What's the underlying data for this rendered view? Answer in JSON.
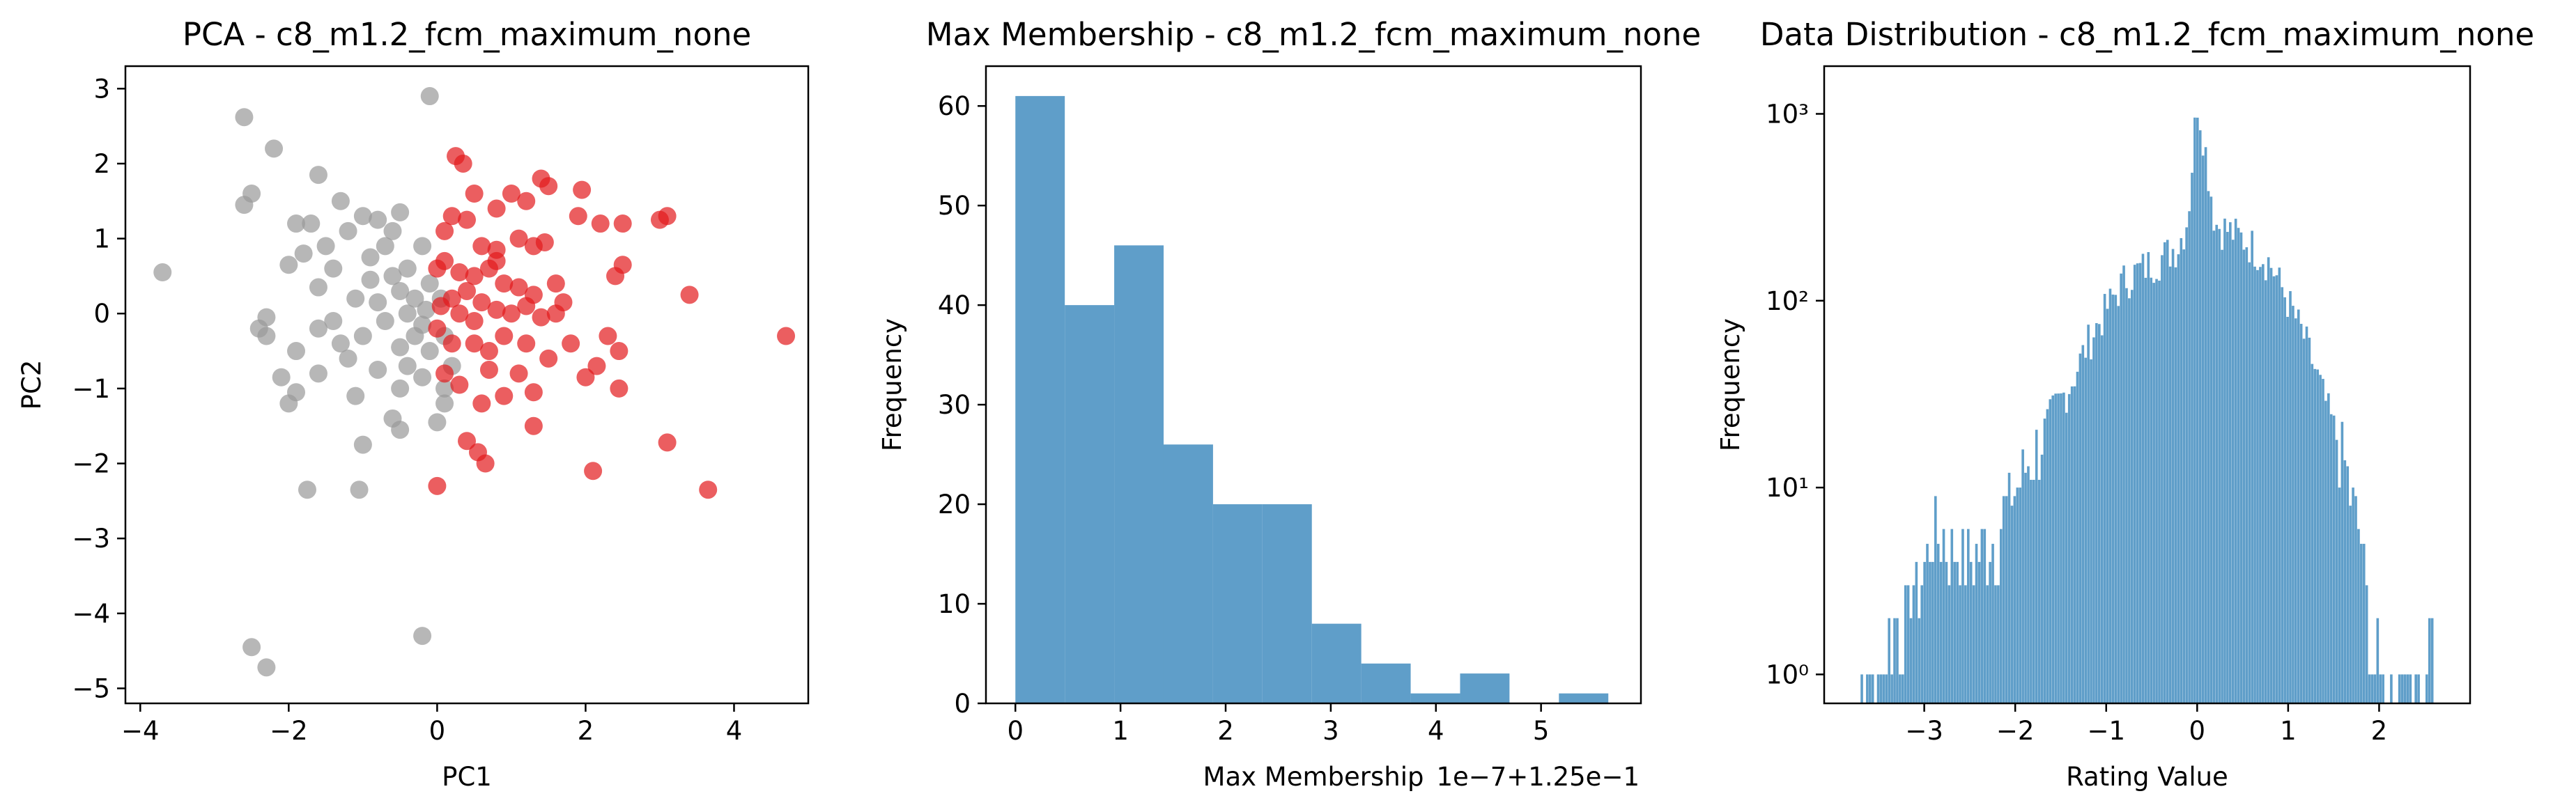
{
  "chart_data": [
    {
      "type": "scatter",
      "title": "PCA - c8_m1.2_fcm_maximum_none",
      "xlabel": "PC1",
      "ylabel": "PC2",
      "xlim": [
        -4.2,
        5.0
      ],
      "ylim": [
        -5.2,
        3.3
      ],
      "xticks": [
        -4,
        -2,
        0,
        2,
        4
      ],
      "yticks": [
        -5,
        -4,
        -3,
        -2,
        -1,
        0,
        1,
        2,
        3
      ],
      "colors": {
        "gray_cluster": "#999999",
        "red_cluster": "#e31a1c"
      },
      "series": [
        {
          "color": "#999999",
          "points": [
            [
              -3.7,
              0.55
            ],
            [
              -2.6,
              2.62
            ],
            [
              -2.2,
              2.2
            ],
            [
              -2.6,
              1.45
            ],
            [
              -2.5,
              1.6
            ],
            [
              -1.6,
              1.85
            ],
            [
              -0.1,
              2.9
            ],
            [
              -1.3,
              1.5
            ],
            [
              -1.0,
              1.3
            ],
            [
              -0.6,
              1.1
            ],
            [
              -0.5,
              1.35
            ],
            [
              -1.9,
              1.2
            ],
            [
              -1.7,
              1.2
            ],
            [
              -1.8,
              0.8
            ],
            [
              -2.0,
              0.65
            ],
            [
              -1.5,
              0.9
            ],
            [
              -1.2,
              1.1
            ],
            [
              -0.9,
              0.75
            ],
            [
              -0.7,
              0.9
            ],
            [
              -0.4,
              0.6
            ],
            [
              -0.2,
              0.9
            ],
            [
              -1.6,
              0.35
            ],
            [
              -1.4,
              0.6
            ],
            [
              -1.1,
              0.2
            ],
            [
              -0.8,
              0.15
            ],
            [
              -0.5,
              0.3
            ],
            [
              -0.3,
              0.2
            ],
            [
              -0.1,
              0.4
            ],
            [
              -2.3,
              -0.05
            ],
            [
              -2.4,
              -0.2
            ],
            [
              -2.3,
              -0.3
            ],
            [
              -1.9,
              -0.5
            ],
            [
              -1.6,
              -0.2
            ],
            [
              -1.3,
              -0.4
            ],
            [
              -1.0,
              -0.3
            ],
            [
              -0.7,
              -0.1
            ],
            [
              -0.5,
              -0.45
            ],
            [
              -0.3,
              -0.3
            ],
            [
              -0.1,
              -0.5
            ],
            [
              0.1,
              -0.3
            ],
            [
              -2.1,
              -0.85
            ],
            [
              -2.0,
              -1.2
            ],
            [
              -1.9,
              -1.05
            ],
            [
              -1.6,
              -0.8
            ],
            [
              -1.1,
              -1.1
            ],
            [
              -0.8,
              -0.75
            ],
            [
              -0.5,
              -1.0
            ],
            [
              -0.2,
              -0.85
            ],
            [
              0.1,
              -1.0
            ],
            [
              -1.0,
              -1.75
            ],
            [
              -0.6,
              -1.4
            ],
            [
              -0.5,
              -1.55
            ],
            [
              0.0,
              -1.45
            ],
            [
              0.1,
              -1.2
            ],
            [
              -1.75,
              -2.35
            ],
            [
              -1.05,
              -2.35
            ],
            [
              -2.5,
              -4.45
            ],
            [
              -2.3,
              -4.72
            ],
            [
              -0.2,
              -4.3
            ],
            [
              -0.4,
              0.0
            ],
            [
              -0.6,
              0.5
            ],
            [
              -0.9,
              0.45
            ],
            [
              -0.15,
              0.05
            ],
            [
              -1.2,
              -0.6
            ],
            [
              -0.4,
              -0.7
            ],
            [
              0.2,
              -0.7
            ],
            [
              0.05,
              0.2
            ],
            [
              -0.8,
              1.25
            ],
            [
              -1.4,
              -0.1
            ],
            [
              -0.2,
              -0.15
            ]
          ]
        },
        {
          "color": "#e31a1c",
          "points": [
            [
              0.25,
              2.1
            ],
            [
              0.35,
              2.0
            ],
            [
              0.5,
              1.6
            ],
            [
              0.8,
              1.4
            ],
            [
              1.0,
              1.6
            ],
            [
              1.2,
              1.5
            ],
            [
              1.4,
              1.8
            ],
            [
              1.5,
              1.7
            ],
            [
              1.95,
              1.65
            ],
            [
              3.0,
              1.25
            ],
            [
              3.1,
              1.3
            ],
            [
              1.9,
              1.3
            ],
            [
              2.2,
              1.2
            ],
            [
              2.5,
              1.2
            ],
            [
              0.1,
              1.1
            ],
            [
              0.2,
              1.3
            ],
            [
              0.4,
              1.25
            ],
            [
              0.6,
              0.9
            ],
            [
              0.8,
              0.85
            ],
            [
              1.1,
              1.0
            ],
            [
              1.3,
              0.9
            ],
            [
              1.45,
              0.95
            ],
            [
              2.4,
              0.5
            ],
            [
              2.5,
              0.65
            ],
            [
              3.4,
              0.25
            ],
            [
              0.0,
              0.6
            ],
            [
              0.1,
              0.7
            ],
            [
              0.3,
              0.55
            ],
            [
              0.5,
              0.5
            ],
            [
              0.7,
              0.6
            ],
            [
              0.9,
              0.4
            ],
            [
              1.1,
              0.35
            ],
            [
              1.3,
              0.25
            ],
            [
              1.6,
              0.4
            ],
            [
              0.05,
              0.1
            ],
            [
              0.2,
              0.2
            ],
            [
              0.4,
              0.3
            ],
            [
              0.6,
              0.15
            ],
            [
              0.8,
              0.05
            ],
            [
              1.0,
              0.0
            ],
            [
              1.2,
              0.1
            ],
            [
              1.4,
              -0.05
            ],
            [
              1.6,
              0.0
            ],
            [
              0.0,
              -0.2
            ],
            [
              0.2,
              -0.4
            ],
            [
              0.5,
              -0.4
            ],
            [
              0.7,
              -0.5
            ],
            [
              0.9,
              -0.3
            ],
            [
              1.2,
              -0.4
            ],
            [
              1.5,
              -0.6
            ],
            [
              2.3,
              -0.3
            ],
            [
              2.45,
              -0.5
            ],
            [
              2.15,
              -0.7
            ],
            [
              2.0,
              -0.85
            ],
            [
              4.7,
              -0.3
            ],
            [
              0.1,
              -0.8
            ],
            [
              0.3,
              -0.95
            ],
            [
              0.6,
              -1.2
            ],
            [
              0.9,
              -1.1
            ],
            [
              1.3,
              -1.05
            ],
            [
              2.45,
              -1.0
            ],
            [
              0.4,
              -1.7
            ],
            [
              0.55,
              -1.85
            ],
            [
              0.65,
              -2.0
            ],
            [
              1.3,
              -1.5
            ],
            [
              3.1,
              -1.72
            ],
            [
              2.1,
              -2.1
            ],
            [
              3.65,
              -2.35
            ],
            [
              0.0,
              -2.3
            ],
            [
              0.8,
              0.7
            ],
            [
              1.1,
              -0.8
            ],
            [
              0.3,
              0.0
            ],
            [
              1.7,
              0.15
            ],
            [
              0.5,
              -0.1
            ],
            [
              0.7,
              -0.75
            ],
            [
              1.8,
              -0.4
            ]
          ]
        }
      ]
    },
    {
      "type": "bar",
      "title": "Max Membership - c8_m1.2_fcm_maximum_none",
      "xlabel": "Max Membership",
      "ylabel": "Frequency",
      "offset_text": "1e−7+1.25e−1",
      "xlim": [
        -0.28,
        5.95
      ],
      "ylim": [
        0,
        64
      ],
      "xticks": [
        0,
        1,
        2,
        3,
        4,
        5
      ],
      "yticks": [
        0,
        10,
        20,
        30,
        40,
        50,
        60
      ],
      "color": "#5f9ec9",
      "bin_edges": [
        0.0,
        0.47,
        0.94,
        1.41,
        1.88,
        2.35,
        2.82,
        3.29,
        3.76,
        4.23,
        4.7,
        5.17,
        5.64
      ],
      "values": [
        61,
        40,
        46,
        26,
        20,
        20,
        8,
        4,
        1,
        3,
        0,
        1
      ]
    },
    {
      "type": "bar",
      "title": "Data Distribution - c8_m1.2_fcm_maximum_none",
      "xlabel": "Rating Value",
      "ylabel": "Frequency",
      "yscale": "log",
      "xlim": [
        -4.1,
        3.0
      ],
      "ylim": [
        0.7,
        1800
      ],
      "xticks": [
        -3,
        -2,
        -1,
        0,
        1,
        2
      ],
      "yticks": [
        1,
        10,
        100,
        1000
      ],
      "ytick_labels": [
        "10⁰",
        "10¹",
        "10²",
        "10³"
      ],
      "color": "#5f9ec9",
      "envelope": [
        [
          -3.7,
          1
        ],
        [
          -3.5,
          1
        ],
        [
          -3.4,
          1.5
        ],
        [
          -3.2,
          2
        ],
        [
          -3.0,
          4
        ],
        [
          -2.9,
          6
        ],
        [
          -2.7,
          5
        ],
        [
          -2.5,
          4
        ],
        [
          -2.2,
          6
        ],
        [
          -2.0,
          10
        ],
        [
          -1.8,
          15
        ],
        [
          -1.6,
          25
        ],
        [
          -1.4,
          35
        ],
        [
          -1.2,
          60
        ],
        [
          -1.0,
          90
        ],
        [
          -0.8,
          130
        ],
        [
          -0.6,
          150
        ],
        [
          -0.4,
          170
        ],
        [
          -0.2,
          200
        ],
        [
          -0.1,
          280
        ],
        [
          0.0,
          1200
        ],
        [
          0.05,
          900
        ],
        [
          0.1,
          600
        ],
        [
          0.2,
          260
        ],
        [
          0.4,
          230
        ],
        [
          0.6,
          200
        ],
        [
          0.8,
          160
        ],
        [
          1.0,
          100
        ],
        [
          1.2,
          60
        ],
        [
          1.4,
          30
        ],
        [
          1.6,
          15
        ],
        [
          1.8,
          5
        ],
        [
          1.9,
          2
        ],
        [
          2.0,
          1
        ],
        [
          2.2,
          0.9
        ],
        [
          2.5,
          1
        ],
        [
          2.6,
          3
        ]
      ]
    }
  ]
}
